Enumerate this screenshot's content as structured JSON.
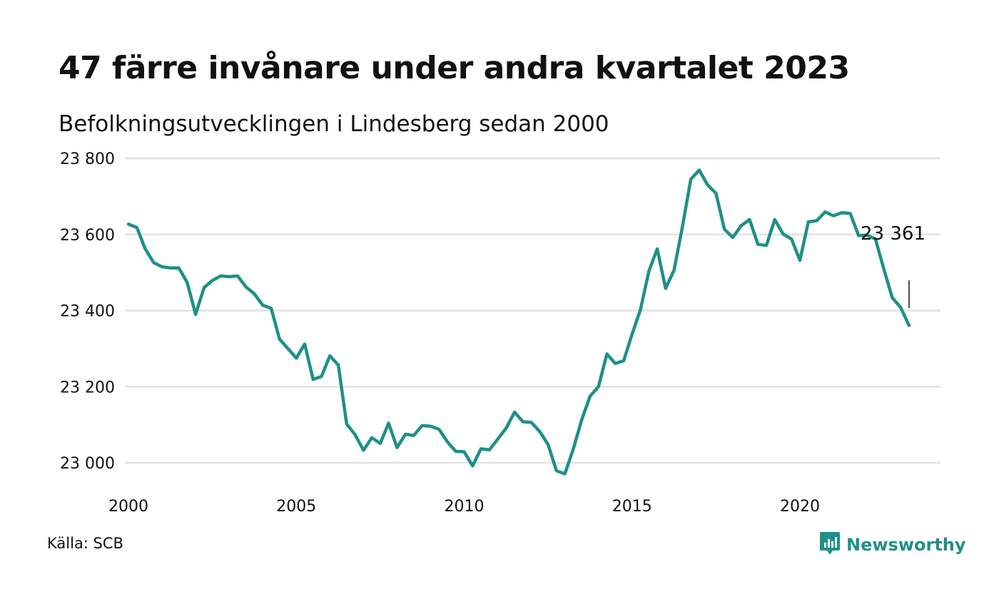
{
  "header": {
    "title": "47 färre invånare under andra kvartalet 2023",
    "subtitle": "Befolkningsutvecklingen i Lindesberg sedan 2000"
  },
  "footer": {
    "source": "Källa: SCB",
    "brand": "Newsworthy",
    "brand_icon": "bar-chart-icon"
  },
  "colors": {
    "line": "#1e9087",
    "grid": "#e2e2e2",
    "text": "#111111"
  },
  "chart_data": {
    "type": "line",
    "title": "47 färre invånare under andra kvartalet 2023",
    "subtitle": "Befolkningsutvecklingen i Lindesberg sedan 2000",
    "xlabel": "",
    "ylabel": "",
    "xlim": [
      2000,
      2024.5
    ],
    "ylim": [
      22950,
      23800
    ],
    "x_ticks": [
      2000,
      2005,
      2010,
      2015,
      2020
    ],
    "y_ticks": [
      23000,
      23200,
      23400,
      23600,
      23800
    ],
    "y_tick_labels": [
      "23 000",
      "23 200",
      "23 400",
      "23 600",
      "23 800"
    ],
    "grid": true,
    "legend": "none",
    "end_label": "23 361",
    "series": [
      {
        "x": [
          2000.0,
          2000.25,
          2000.5,
          2000.75,
          2001.0,
          2001.25,
          2001.5,
          2001.75,
          2002.0,
          2002.25,
          2002.5,
          2002.75,
          2003.0,
          2003.25,
          2003.5,
          2003.75,
          2004.0,
          2004.25,
          2004.5,
          2004.75,
          2005.0,
          2005.25,
          2005.5,
          2005.75,
          2006.0,
          2006.25,
          2006.5,
          2006.75,
          2007.0,
          2007.25,
          2007.5,
          2007.75,
          2008.0,
          2008.25,
          2008.5,
          2008.75,
          2009.0,
          2009.25,
          2009.5,
          2009.75,
          2010.0,
          2010.25,
          2010.5,
          2010.75,
          2011.0,
          2011.25,
          2011.5,
          2011.75,
          2012.0,
          2012.25,
          2012.5,
          2012.75,
          2013.0,
          2013.25,
          2013.5,
          2013.75,
          2014.0,
          2014.25,
          2014.5,
          2014.75,
          2015.0,
          2015.25,
          2015.5,
          2015.75,
          2016.0,
          2016.25,
          2016.5,
          2016.75,
          2017.0,
          2017.25,
          2017.5,
          2017.75,
          2018.0,
          2018.25,
          2018.5,
          2018.75,
          2019.0,
          2019.25,
          2019.5,
          2019.75,
          2020.0,
          2020.25,
          2020.5,
          2020.75,
          2021.0,
          2021.25,
          2021.5,
          2021.75,
          2022.0,
          2022.25,
          2022.5,
          2022.75,
          2023.0,
          2023.25
        ],
        "values": [
          23627,
          23618,
          23562,
          23526,
          23515,
          23512,
          23512,
          23474,
          23390,
          23460,
          23479,
          23491,
          23489,
          23491,
          23462,
          23444,
          23414,
          23406,
          23325,
          23300,
          23275,
          23312,
          23219,
          23227,
          23281,
          23257,
          23102,
          23074,
          23033,
          23066,
          23051,
          23104,
          23040,
          23075,
          23072,
          23098,
          23096,
          23088,
          23055,
          23030,
          23029,
          22992,
          23037,
          23034,
          23062,
          23091,
          23133,
          23108,
          23106,
          23082,
          23048,
          22979,
          22971,
          23036,
          23113,
          23175,
          23200,
          23286,
          23261,
          23268,
          23338,
          23402,
          23503,
          23562,
          23458,
          23506,
          23620,
          23745,
          23769,
          23730,
          23708,
          23614,
          23592,
          23623,
          23639,
          23574,
          23571,
          23639,
          23601,
          23588,
          23532,
          23633,
          23636,
          23659,
          23649,
          23657,
          23655,
          23597,
          23598,
          23588,
          23509,
          23434,
          23408,
          23361
        ]
      }
    ]
  }
}
